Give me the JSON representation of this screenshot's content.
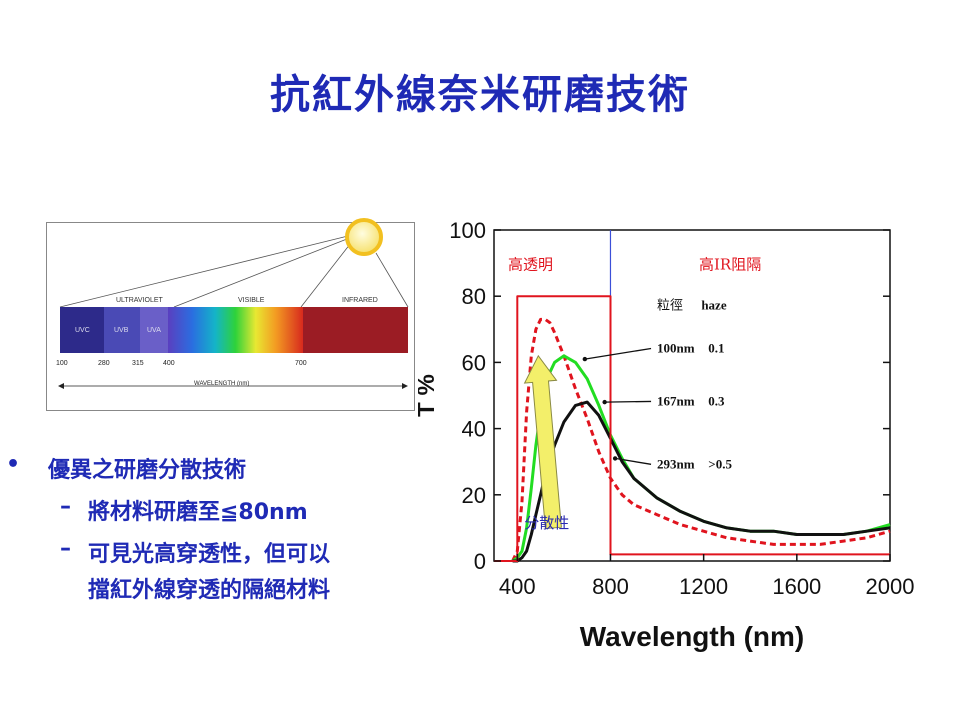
{
  "slide": {
    "title": "抗紅外線奈米研磨技術",
    "bullets": {
      "main": {
        "marker": "•",
        "text": "優異之研磨分散技術"
      },
      "subs": [
        {
          "marker": "–",
          "text": "將材料研磨至≦80nm"
        },
        {
          "marker": "–",
          "text": "可見光高穿透性，但可以",
          "text_line2": "擋紅外線穿透的隔絕材料"
        }
      ]
    }
  },
  "spectrum": {
    "band_labels": [
      "ULTRAVIOLET",
      "VISIBLE",
      "INFRARED"
    ],
    "segment_labels": [
      "UVC",
      "UVB",
      "UVA"
    ],
    "ticks": [
      "100",
      "280",
      "315",
      "400",
      "700"
    ],
    "axis_label": "WAVELENGTH (nm)",
    "colors": {
      "uvc": "#2d2a8a",
      "uvb": "#4a4ab5",
      "uva": "#6a5fc8",
      "ir": "#9b1c24",
      "sun": "#fff3a0"
    }
  },
  "chart_data": {
    "type": "line",
    "xlabel": "Wavelength (nm)",
    "ylabel": "T %",
    "xlim": [
      300,
      2000
    ],
    "ylim": [
      0,
      100
    ],
    "xticks": [
      400,
      800,
      1200,
      1600,
      2000
    ],
    "yticks": [
      0,
      20,
      40,
      60,
      80,
      100
    ],
    "region_labels": {
      "left": "高透明",
      "right": "高IR阻隔"
    },
    "legend_header": {
      "size": "粒徑",
      "haze": "haze"
    },
    "annotations": [
      {
        "size": "100nm",
        "haze": "0.1"
      },
      {
        "size": "167nm",
        "haze": "0.3"
      },
      {
        "size": "293nm",
        "haze": ">0.5"
      }
    ],
    "arrow_label": "分散性",
    "series": [
      {
        "color": "#e0141e",
        "dash": "6,4",
        "x": [
          380,
          400,
          420,
          440,
          460,
          480,
          500,
          520,
          540,
          560,
          600,
          650,
          700,
          750,
          800,
          850,
          900,
          1000,
          1100,
          1200,
          1300,
          1400,
          1500,
          1600,
          1700,
          1800,
          1900,
          2000
        ],
        "y": [
          0,
          3,
          18,
          45,
          62,
          70,
          73,
          73,
          72,
          69,
          62,
          52,
          43,
          33,
          25,
          20,
          17,
          14,
          11,
          9,
          7,
          6,
          5,
          5,
          5,
          6,
          7,
          9
        ]
      },
      {
        "color": "#22dd22",
        "x": [
          380,
          400,
          420,
          440,
          460,
          480,
          500,
          520,
          540,
          560,
          600,
          650,
          700,
          750,
          800,
          850,
          900,
          1000,
          1100,
          1200,
          1300,
          1400,
          1500,
          1600,
          1700,
          1800,
          1900,
          2000
        ],
        "y": [
          0,
          1,
          3,
          10,
          22,
          35,
          45,
          52,
          57,
          60,
          62,
          60,
          55,
          47,
          38,
          31,
          25,
          19,
          15,
          12,
          10,
          9,
          9,
          8,
          8,
          8,
          9,
          11
        ]
      },
      {
        "color": "#111111",
        "x": [
          380,
          400,
          420,
          440,
          460,
          480,
          500,
          520,
          540,
          560,
          600,
          650,
          700,
          750,
          800,
          850,
          900,
          1000,
          1100,
          1200,
          1300,
          1400,
          1500,
          1600,
          1700,
          1800,
          1900,
          2000
        ],
        "y": [
          0,
          0,
          1,
          3,
          8,
          14,
          20,
          26,
          31,
          35,
          42,
          47,
          48,
          44,
          37,
          30,
          25,
          19,
          15,
          12,
          10,
          9,
          9,
          8,
          8,
          8,
          9,
          10
        ]
      },
      {
        "color": "#e0141e",
        "x": [
          300,
          400,
          400,
          800,
          800,
          2000
        ],
        "y": [
          0,
          0,
          80,
          80,
          2,
          2
        ]
      }
    ],
    "divider_x": 800,
    "colors": {
      "axis": "#111111",
      "divider": "#3b4fd8",
      "arrow_fill": "#f3ef6a",
      "arrow_stroke": "#8a8a44",
      "text_red": "#e0141e",
      "text_blue": "#2a2ab0"
    }
  }
}
